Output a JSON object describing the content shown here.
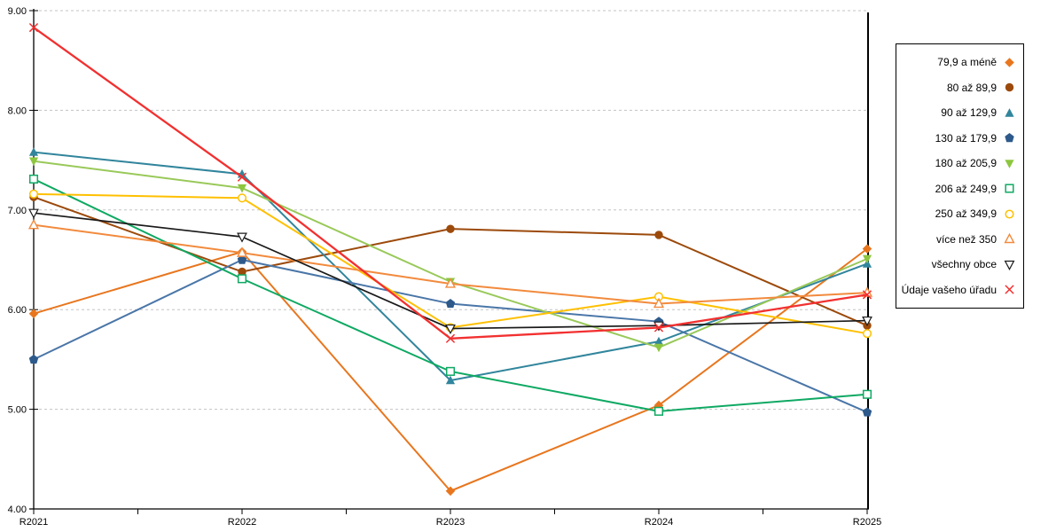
{
  "chart_data": {
    "type": "line",
    "title": "",
    "xlabel": "",
    "ylabel": "",
    "x_categories": [
      "R2021",
      "R2022",
      "R2023",
      "R2024",
      "R2025"
    ],
    "y_axis": {
      "min": 4,
      "max": 9,
      "step": 1,
      "tick_labels": [
        "4.00",
        "5.00",
        "6.00",
        "7.00",
        "8.00",
        "9.00"
      ],
      "grid": "dashed"
    },
    "legend_position": "right",
    "series": [
      {
        "name": "79,9 a méně",
        "marker": "diamond",
        "color": "#E8761E",
        "line_width": 2,
        "values": [
          5.96,
          6.58,
          4.18,
          5.04,
          6.61
        ]
      },
      {
        "name": "80 až 89,9",
        "marker": "circle",
        "color": "#9C4A0B",
        "line_width": 2,
        "values": [
          7.13,
          6.38,
          6.81,
          6.75,
          5.84
        ]
      },
      {
        "name": "90 až 129,9",
        "marker": "triangle",
        "color": "#31859C",
        "line_width": 2,
        "values": [
          7.58,
          7.36,
          5.29,
          5.68,
          6.46
        ]
      },
      {
        "name": "130 až 179,9",
        "marker": "pentagon",
        "color": "#4A76A8",
        "marker_color": "#2D5A8B",
        "line_width": 2,
        "values": [
          5.5,
          6.5,
          6.06,
          5.88,
          4.97
        ]
      },
      {
        "name": "180 až 205,9",
        "marker": "triangle-down",
        "color": "#99C959",
        "marker_color": "#8DC63F",
        "line_width": 2,
        "values": [
          7.49,
          7.22,
          6.28,
          5.62,
          6.51
        ]
      },
      {
        "name": "206 až 249,9",
        "marker": "square-open",
        "color": "#0FA963",
        "line_width": 2,
        "values": [
          7.31,
          6.31,
          5.38,
          4.98,
          5.15
        ]
      },
      {
        "name": "250 až 349,9",
        "marker": "circle-open",
        "color": "#FFC000",
        "line_width": 2,
        "values": [
          7.16,
          7.12,
          5.82,
          6.13,
          5.76
        ]
      },
      {
        "name": "více než 350",
        "marker": "triangle-open",
        "color": "#F28A3D",
        "line_width": 2,
        "values": [
          6.85,
          6.57,
          6.26,
          6.06,
          6.17
        ]
      },
      {
        "name": "všechny obce",
        "marker": "triangle-down-open",
        "color": "#1A1A1A",
        "line_width": 1.7,
        "values": [
          6.97,
          6.73,
          5.81,
          5.84,
          5.89
        ]
      },
      {
        "name": "Údaje vašeho úřadu",
        "marker": "x-cross",
        "color": "#F23030",
        "line_width": 2.3,
        "values": [
          8.83,
          7.33,
          5.71,
          5.82,
          6.15
        ]
      }
    ],
    "grid_color": "#C3C3C3",
    "axis_color": "#000000"
  }
}
